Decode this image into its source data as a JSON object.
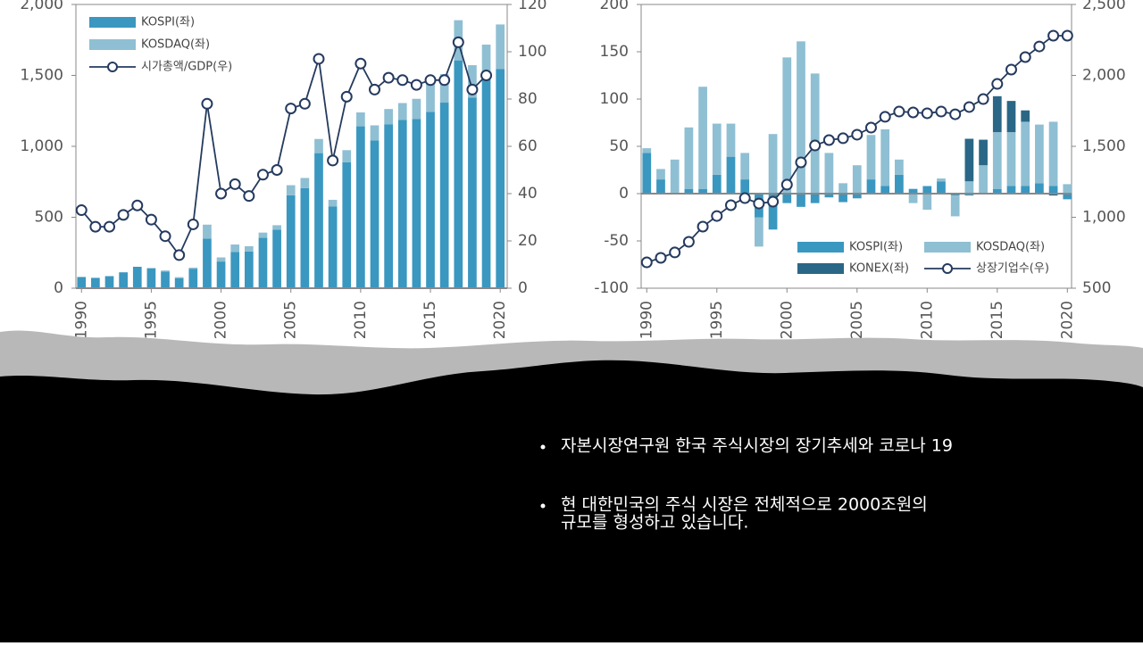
{
  "chart_data": [
    {
      "type": "bar",
      "stacked": true,
      "legend": "upper left",
      "x": [
        1990,
        1991,
        1992,
        1993,
        1994,
        1995,
        1996,
        1997,
        1998,
        1999,
        2000,
        2001,
        2002,
        2003,
        2004,
        2005,
        2006,
        2007,
        2008,
        2009,
        2010,
        2011,
        2012,
        2013,
        2014,
        2015,
        2016,
        2017,
        2018,
        2019,
        2020
      ],
      "xlim": [
        1989.6,
        2020.5
      ],
      "xticks": [
        1990,
        1995,
        2000,
        2005,
        2010,
        2015,
        2020
      ],
      "ylim": [
        0,
        2000
      ],
      "yticks": [
        0,
        500,
        {
          "value": 1000,
          "label": "1,000"
        },
        {
          "value": 1500,
          "label": "1,500"
        },
        {
          "value": 2000,
          "label": "2,000"
        }
      ],
      "y2lim": [
        0,
        120
      ],
      "y2ticks": [
        0,
        20,
        40,
        60,
        80,
        100,
        120
      ],
      "series": [
        {
          "name": "KOSPI(좌)",
          "type": "bar",
          "color": "#3a97c0",
          "values": [
            79,
            73,
            85,
            112,
            151,
            141,
            117,
            71,
            137,
            350,
            188,
            256,
            259,
            355,
            413,
            655,
            705,
            952,
            577,
            887,
            1141,
            1042,
            1154,
            1186,
            1192,
            1243,
            1308,
            1606,
            1344,
            1476,
            1544
          ]
        },
        {
          "name": "KOSDAQ(좌)",
          "type": "bar",
          "color": "#8fbfd3",
          "values": [
            0,
            0,
            0,
            0,
            0,
            0,
            8,
            7,
            8,
            98,
            29,
            52,
            37,
            37,
            31,
            71,
            72,
            100,
            46,
            86,
            98,
            106,
            109,
            119,
            143,
            201,
            201,
            283,
            228,
            241,
            315
          ]
        },
        {
          "name": "시가총액/GDP(우)",
          "type": "line",
          "axis": "y2",
          "color": "#253a5e",
          "values": [
            33,
            26,
            26,
            31,
            35,
            29,
            22,
            14,
            27,
            78,
            40,
            44,
            39,
            48,
            50,
            76,
            78,
            97,
            54,
            81,
            95,
            84,
            89,
            88,
            86,
            88,
            88,
            104,
            84,
            90,
            null
          ]
        }
      ]
    },
    {
      "type": "bar",
      "stacked": true,
      "legend": "lower right",
      "x": [
        1990,
        1991,
        1992,
        1993,
        1994,
        1995,
        1996,
        1997,
        1998,
        1999,
        2000,
        2001,
        2002,
        2003,
        2004,
        2005,
        2006,
        2007,
        2008,
        2009,
        2010,
        2011,
        2012,
        2013,
        2014,
        2015,
        2016,
        2017,
        2018,
        2019,
        2020
      ],
      "xlim": [
        1989.6,
        2020.3
      ],
      "xticks": [
        1990,
        1995,
        2000,
        2005,
        2010,
        2015,
        2020
      ],
      "ylim": [
        -100,
        200
      ],
      "yticks": [
        -100,
        -50,
        0,
        50,
        100,
        150,
        200
      ],
      "y2lim": [
        500,
        2500
      ],
      "y2ticks": [
        500,
        {
          "value": 1000,
          "label": "1,000"
        },
        {
          "value": 1500,
          "label": "1,500"
        },
        {
          "value": 2000,
          "label": "2,000"
        },
        {
          "value": 2500,
          "label": "2,500"
        }
      ],
      "series": [
        {
          "name": "KOSPI(좌)",
          "type": "bar",
          "color": "#3a97c0",
          "values": [
            43,
            15,
            1,
            5,
            5,
            20,
            39,
            15,
            -25,
            -38,
            -10,
            -14,
            -10,
            -4,
            -9,
            -5,
            15,
            8,
            20,
            5,
            8,
            13,
            -2,
            -2,
            0,
            5,
            8,
            8,
            11,
            8,
            -6
          ]
        },
        {
          "name": "KOSDAQ(좌)",
          "type": "bar",
          "color": "#8fbfd3",
          "values": [
            5,
            11,
            35,
            65,
            108,
            54,
            35,
            28,
            -31,
            63,
            144,
            161,
            127,
            43,
            11,
            30,
            47,
            60,
            16,
            -10,
            -17,
            3,
            -22,
            13,
            30,
            60,
            57,
            68,
            62,
            68,
            10
          ]
        },
        {
          "name": "KONEX(좌)",
          "type": "bar",
          "color": "#2a6787",
          "values": [
            null,
            null,
            null,
            null,
            null,
            null,
            null,
            null,
            null,
            null,
            null,
            null,
            null,
            null,
            null,
            null,
            null,
            null,
            null,
            null,
            null,
            null,
            null,
            45,
            27,
            38,
            33,
            12,
            0,
            -2,
            0
          ]
        },
        {
          "name": "상장기업수(우)",
          "type": "line",
          "axis": "y2",
          "color": "#253a5e",
          "values": [
            682,
            714,
            752,
            827,
            934,
            1009,
            1085,
            1135,
            1097,
            1110,
            1230,
            1387,
            1506,
            1544,
            1557,
            1582,
            1632,
            1708,
            1745,
            1739,
            1733,
            1745,
            1726,
            1777,
            1833,
            1940,
            2041,
            2129,
            2204,
            2280,
            2280
          ]
        }
      ]
    }
  ],
  "bullets": [
    {
      "lines": [
        "자본시장연구원 한국 주식시장의 장기추세와 코로나 19"
      ]
    },
    {
      "lines": [
        "현 대한민국의 주식 시장은 전체적으로 2000조원의",
        "규모를 형성하고 있습니다."
      ]
    }
  ]
}
